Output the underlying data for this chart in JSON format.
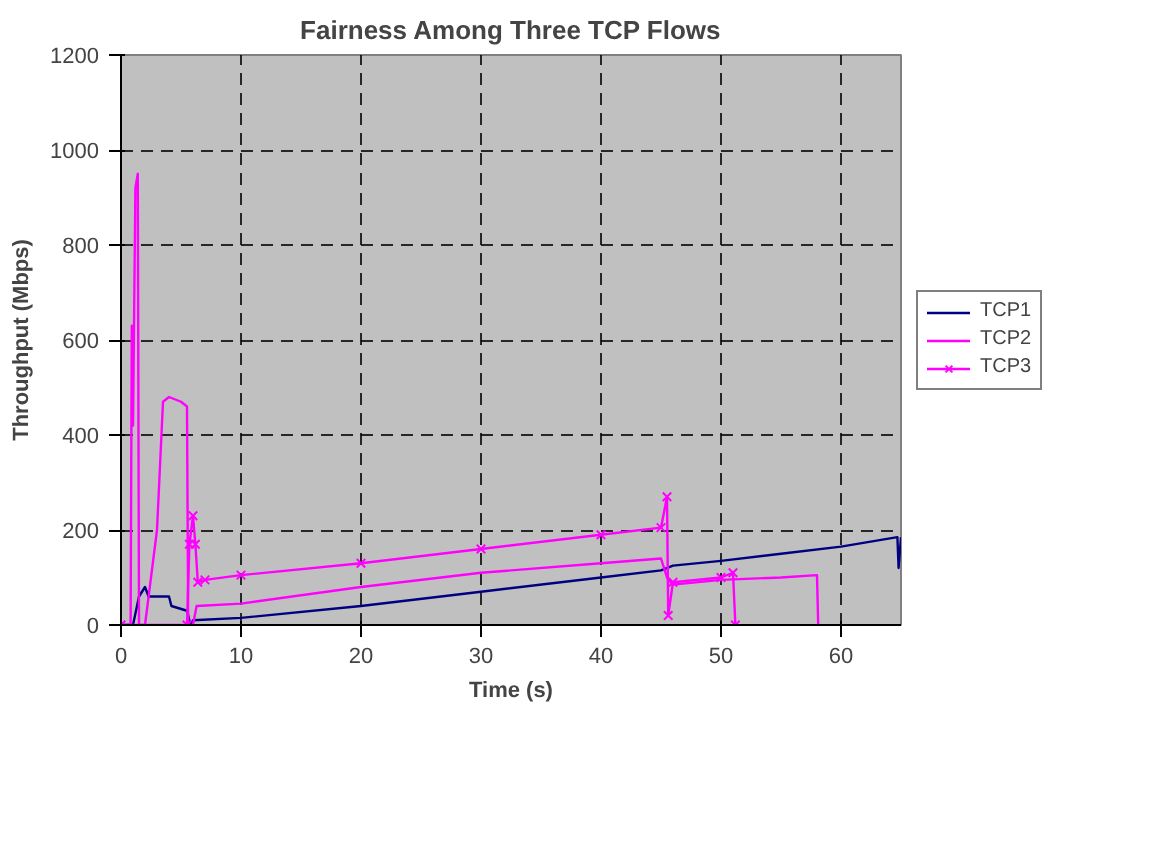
{
  "chart_data": {
    "type": "line",
    "title": "Fairness Among Three TCP Flows",
    "xlabel": "Time (s)",
    "ylabel": "Throughput (Mbps)",
    "xlim": [
      0,
      65
    ],
    "ylim": [
      0,
      1200
    ],
    "xticks": [
      0,
      10,
      20,
      30,
      40,
      50,
      60
    ],
    "yticks": [
      0,
      200,
      400,
      600,
      800,
      1000,
      1200
    ],
    "grid": true,
    "legend": "right",
    "line_style": "solid",
    "series": [
      {
        "name": "TCP1",
        "color": "#000080",
        "marker": "none",
        "x": [
          0,
          1,
          1.5,
          2,
          2.3,
          4,
          4.2,
          5.5,
          5.8,
          6,
          10,
          20,
          30,
          40,
          45,
          46,
          50,
          55,
          60,
          64.7,
          64.8,
          65
        ],
        "values": [
          0,
          0,
          60,
          80,
          60,
          60,
          40,
          30,
          0,
          10,
          15,
          40,
          70,
          100,
          115,
          125,
          135,
          150,
          165,
          185,
          120,
          185
        ]
      },
      {
        "name": "TCP2",
        "color": "#ff00ff",
        "marker": "none",
        "x": [
          0,
          0.8,
          0.9,
          1.0,
          1.2,
          1.4,
          1.5,
          2,
          3,
          3.5,
          4,
          5,
          5.5,
          5.6,
          6,
          6.3,
          10,
          20,
          30,
          40,
          45,
          45.5,
          46,
          50,
          55,
          58,
          58.1
        ],
        "values": [
          0,
          0,
          630,
          420,
          920,
          950,
          0,
          0,
          200,
          470,
          480,
          470,
          460,
          0,
          0,
          40,
          45,
          80,
          110,
          130,
          140,
          100,
          85,
          95,
          100,
          105,
          0
        ]
      },
      {
        "name": "TCP3",
        "color": "#ff00ff",
        "marker": "cross",
        "x": [
          0,
          5.5,
          5.7,
          6,
          6.2,
          6.4,
          7,
          10,
          20,
          30,
          40,
          45,
          45.5,
          45.6,
          46,
          50,
          51,
          51.2
        ],
        "values": [
          0,
          0,
          170,
          230,
          170,
          90,
          95,
          105,
          130,
          160,
          190,
          205,
          270,
          20,
          90,
          100,
          110,
          0
        ]
      }
    ]
  }
}
